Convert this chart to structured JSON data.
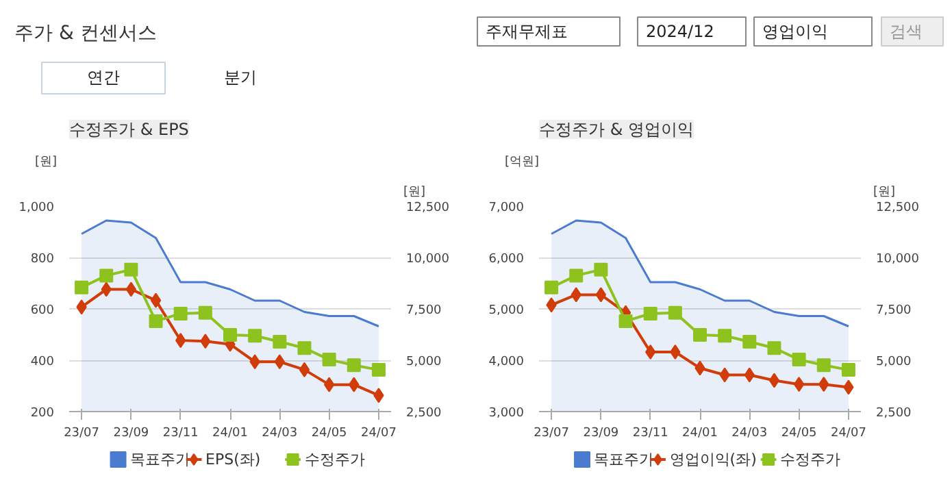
{
  "chart_data": [
    {
      "type": "other",
      "title": "주가 & 컨센서스",
      "annotations": [
        "주재무제표",
        "2024/12",
        "영업이익",
        "검색",
        "연간",
        "분기"
      ]
    },
    {
      "type": "line",
      "title": "수정주가 & EPS",
      "ylabel": "[원]",
      "y2label": "[원]",
      "categories": [
        "23/07",
        null,
        "23/09",
        null,
        "23/11",
        null,
        "24/01",
        null,
        "24/03",
        null,
        "24/05",
        null,
        "24/07"
      ],
      "ylim": [
        200,
        1000
      ],
      "yticks": [
        200,
        400,
        600,
        800,
        {
          "value": 1000,
          "label": "1,000"
        }
      ],
      "y2lim": [
        2500,
        12500
      ],
      "y2ticks": [
        {
          "value": 2500,
          "label": "2,500"
        },
        {
          "value": 5000,
          "label": "5,000"
        },
        {
          "value": 7500,
          "label": "7,500"
        },
        {
          "value": 10000,
          "label": "10,000"
        },
        {
          "value": 12500,
          "label": "12,500"
        }
      ],
      "grid": "y",
      "legend": "bottom",
      "series": [
        {
          "name": "목표주가",
          "type": "area",
          "axis": "y2",
          "color": "#4a7bd0",
          "marker": "none",
          "values": [
            11150,
            11800,
            11700,
            10950,
            8800,
            8800,
            8450,
            7900,
            7900,
            7350,
            7150,
            7150,
            6650
          ]
        },
        {
          "name": "EPS(좌)",
          "type": "line",
          "color": "#d13c0b",
          "marker": "diamond",
          "values": [
            607,
            676,
            676,
            633,
            477,
            474,
            462,
            394,
            394,
            363,
            305,
            305,
            263
          ]
        },
        {
          "name": "수정주가",
          "type": "line",
          "axis": "y2",
          "color": "#8dc21f",
          "marker": "square",
          "values": [
            8540,
            9120,
            9410,
            6900,
            7270,
            7310,
            6230,
            6190,
            5900,
            5590,
            5030,
            4760,
            4530
          ]
        }
      ]
    },
    {
      "type": "line",
      "title": "수정주가 & 영업이익",
      "ylabel": "[억원]",
      "y2label": "[원]",
      "categories": [
        "23/07",
        null,
        "23/09",
        null,
        "23/11",
        null,
        "24/01",
        null,
        "24/03",
        null,
        "24/05",
        null,
        "24/07"
      ],
      "ylim": [
        3000,
        7000
      ],
      "yticks": [
        {
          "value": 3000,
          "label": "3,000"
        },
        {
          "value": 4000,
          "label": "4,000"
        },
        {
          "value": 5000,
          "label": "5,000"
        },
        {
          "value": 6000,
          "label": "6,000"
        },
        {
          "value": 7000,
          "label": "7,000"
        }
      ],
      "y2lim": [
        2500,
        12500
      ],
      "y2ticks": [
        {
          "value": 2500,
          "label": "2,500"
        },
        {
          "value": 5000,
          "label": "5,000"
        },
        {
          "value": 7500,
          "label": "7,500"
        },
        {
          "value": 10000,
          "label": "10,000"
        },
        {
          "value": 12500,
          "label": "12,500"
        }
      ],
      "grid": "y",
      "legend": "bottom",
      "series": [
        {
          "name": "목표주가",
          "type": "area",
          "axis": "y2",
          "color": "#4a7bd0",
          "marker": "none",
          "values": [
            11150,
            11800,
            11700,
            10950,
            8800,
            8800,
            8450,
            7900,
            7900,
            7350,
            7150,
            7150,
            6650
          ]
        },
        {
          "name": "영업이익(좌)",
          "type": "line",
          "color": "#d13c0b",
          "marker": "diamond",
          "values": [
            5075,
            5275,
            5275,
            4925,
            4160,
            4160,
            3846,
            3714,
            3714,
            3606,
            3531,
            3531,
            3473
          ]
        },
        {
          "name": "수정주가",
          "type": "line",
          "axis": "y2",
          "color": "#8dc21f",
          "marker": "square",
          "values": [
            8540,
            9120,
            9410,
            6900,
            7270,
            7310,
            6230,
            6190,
            5900,
            5590,
            5030,
            4760,
            4530
          ]
        }
      ]
    }
  ]
}
